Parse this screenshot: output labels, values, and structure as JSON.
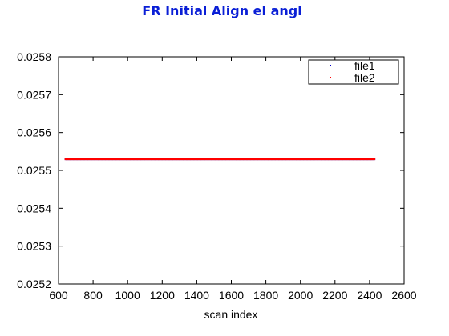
{
  "chart_data": {
    "type": "scatter",
    "title": "FR Initial Align el angl",
    "xlabel": "scan index",
    "ylabel": "",
    "xlim": [
      600,
      2600
    ],
    "ylim": [
      0.0252,
      0.0258
    ],
    "xticks": [
      "600",
      "800",
      "1000",
      "1200",
      "1400",
      "1600",
      "1800",
      "2000",
      "2200",
      "2400",
      "2600"
    ],
    "yticks": [
      "0.0252",
      "0.0253",
      "0.0254",
      "0.0255",
      "0.0256",
      "0.0257",
      "0.0258"
    ],
    "grid": false,
    "legend_position": "top-right",
    "series": [
      {
        "name": "file1",
        "color": "#0000cc",
        "x_range": [
          640,
          2430
        ],
        "y": 0.02553
      },
      {
        "name": "file2",
        "color": "#ff0000",
        "x_range": [
          640,
          2430
        ],
        "y": 0.02553
      }
    ]
  }
}
